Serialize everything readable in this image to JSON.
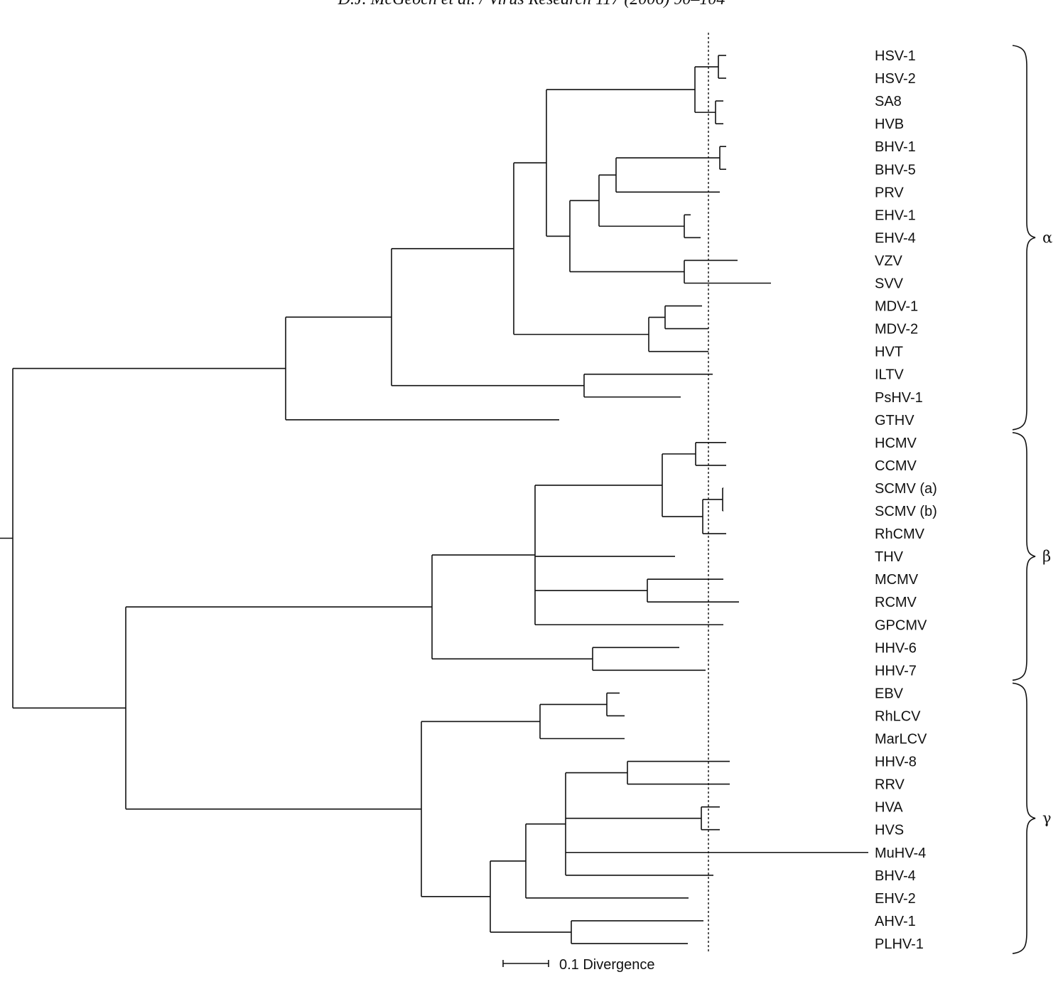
{
  "header": "D.J. McGeoch et al. / Virus Research 117 (2006) 90–104",
  "scale_bar_label": "0.1 Divergence",
  "groups": [
    {
      "symbol": "α",
      "first_leaf": "HSV-1",
      "last_leaf": "GTHV"
    },
    {
      "symbol": "β",
      "first_leaf": "HCMV",
      "last_leaf": "HHV-7"
    },
    {
      "symbol": "γ",
      "first_leaf": "EBV",
      "last_leaf": "PLHV-1"
    }
  ],
  "tree": {
    "children": [
      {
        "children": [
          {
            "children": [
              {
                "children": [
                  {
                    "children": [
                      {
                        "children": [
                          {
                            "name": "HSV-1"
                          },
                          {
                            "name": "HSV-2"
                          }
                        ]
                      },
                      {
                        "children": [
                          {
                            "name": "SA8"
                          },
                          {
                            "name": "HVB"
                          }
                        ]
                      }
                    ]
                  },
                  {
                    "children": [
                      {
                        "children": [
                          {
                            "children": [
                              {
                                "name": "BHV-1"
                              },
                              {
                                "name": "BHV-5"
                              }
                            ]
                          },
                          {
                            "name": "PRV"
                          }
                        ]
                      },
                      {
                        "children": [
                          {
                            "name": "EHV-1"
                          },
                          {
                            "name": "EHV-4"
                          }
                        ]
                      }
                    ]
                  },
                  {
                    "children": [
                      {
                        "name": "VZV"
                      },
                      {
                        "name": "SVV"
                      }
                    ]
                  }
                ]
              },
              {
                "children": [
                  {
                    "children": [
                      {
                        "name": "MDV-1"
                      },
                      {
                        "name": "MDV-2"
                      }
                    ]
                  },
                  {
                    "name": "HVT"
                  }
                ]
              }
            ]
          },
          {
            "children": [
              {
                "name": "ILTV"
              },
              {
                "name": "PsHV-1"
              }
            ]
          }
        ]
      },
      {
        "name": "GTHV"
      }
    ]
  }
}
